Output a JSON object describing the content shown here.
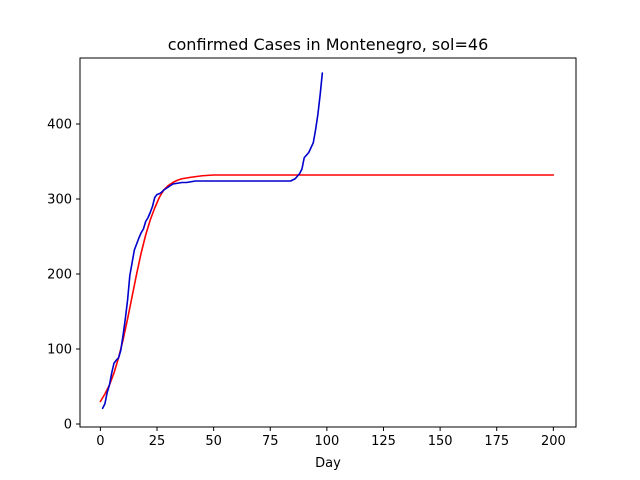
{
  "chart_data": {
    "type": "line",
    "title": "confirmed Cases in Montenegro, sol=46",
    "xlabel": "Day",
    "ylabel": "",
    "xlim": [
      -9,
      210
    ],
    "ylim": [
      -4,
      488
    ],
    "xticks": [
      0,
      25,
      50,
      75,
      100,
      125,
      150,
      175,
      200
    ],
    "yticks": [
      0,
      100,
      200,
      300,
      400
    ],
    "grid": false,
    "legend": "none",
    "series": [
      {
        "color": "#ff0000",
        "x": [
          0,
          2,
          4,
          6,
          8,
          10,
          12,
          14,
          16,
          18,
          20,
          22,
          24,
          26,
          28,
          30,
          32,
          34,
          36,
          38,
          40,
          45,
          50,
          60,
          80,
          100,
          150,
          200
        ],
        "y": [
          30,
          40,
          52,
          68,
          88,
          112,
          140,
          170,
          200,
          228,
          252,
          272,
          288,
          302,
          312,
          318,
          322,
          325,
          327,
          328,
          329,
          331,
          332,
          332,
          332,
          332,
          332,
          332
        ]
      },
      {
        "color": "#0000cc",
        "x": [
          1,
          2,
          3,
          4,
          5,
          6,
          7,
          8,
          9,
          10,
          11,
          12,
          13,
          14,
          15,
          16,
          17,
          18,
          19,
          20,
          21,
          22,
          23,
          24,
          25,
          26,
          27,
          28,
          30,
          32,
          34,
          36,
          38,
          40,
          42,
          44,
          50,
          60,
          70,
          80,
          84,
          86,
          88,
          89,
          90,
          92,
          94,
          95,
          96,
          97,
          98
        ],
        "y": [
          21,
          27,
          42,
          52,
          68,
          81,
          85,
          88,
          98,
          118,
          140,
          165,
          198,
          215,
          232,
          240,
          248,
          255,
          260,
          270,
          275,
          282,
          290,
          302,
          306,
          307,
          309,
          312,
          316,
          320,
          321,
          322,
          322,
          323,
          324,
          324,
          324,
          324,
          324,
          324,
          324,
          327,
          334,
          340,
          355,
          362,
          375,
          392,
          412,
          438,
          468
        ]
      }
    ]
  }
}
